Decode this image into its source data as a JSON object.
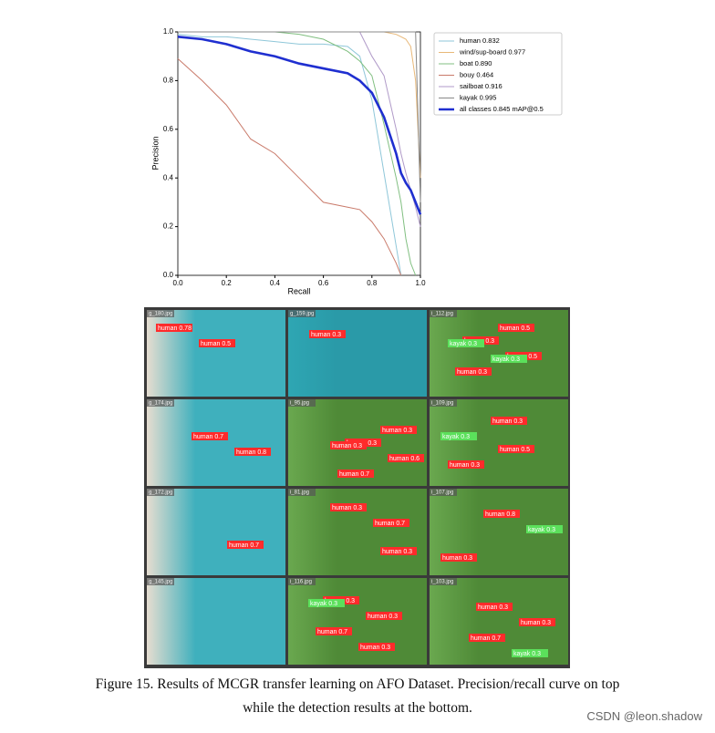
{
  "chart_data": {
    "type": "line",
    "xlabel": "Recall",
    "ylabel": "Precision",
    "x": [
      0,
      0.1,
      0.2,
      0.3,
      0.4,
      0.5,
      0.6,
      0.7,
      0.75,
      0.8,
      0.85,
      0.9,
      0.92,
      0.94,
      0.96,
      0.98,
      1.0
    ],
    "series": [
      {
        "name": "human 0.832",
        "color": "#8fc7d9",
        "values": [
          0.99,
          0.98,
          0.98,
          0.97,
          0.96,
          0.95,
          0.95,
          0.94,
          0.9,
          0.72,
          0.42,
          0.12,
          0.0,
          null,
          null,
          null,
          null
        ]
      },
      {
        "name": "wind/sup-board 0.977",
        "color": "#e8b878",
        "values": [
          1.0,
          1.0,
          1.0,
          1.0,
          1.0,
          1.0,
          1.0,
          1.0,
          1.0,
          1.0,
          1.0,
          0.99,
          0.98,
          0.97,
          0.94,
          0.8,
          0.4
        ]
      },
      {
        "name": "boat 0.890",
        "color": "#80bf80",
        "values": [
          1.0,
          1.0,
          1.0,
          1.0,
          1.0,
          0.99,
          0.97,
          0.92,
          0.88,
          0.82,
          0.62,
          0.4,
          0.3,
          0.15,
          0.05,
          0.0,
          null
        ]
      },
      {
        "name": "bouy 0.464",
        "color": "#c97a6a",
        "values": [
          0.89,
          0.8,
          0.7,
          0.56,
          0.5,
          0.4,
          0.3,
          0.28,
          0.27,
          0.22,
          0.15,
          0.05,
          0.0,
          null,
          null,
          null,
          null
        ]
      },
      {
        "name": "sailboat 0.916",
        "color": "#b09ac8",
        "values": [
          1.0,
          1.0,
          1.0,
          1.0,
          1.0,
          1.0,
          1.0,
          1.0,
          1.0,
          0.9,
          0.82,
          0.6,
          0.5,
          0.42,
          0.35,
          0.28,
          0.2
        ]
      },
      {
        "name": "kayak 0.995",
        "color": "#888888",
        "values": [
          1.0,
          1.0,
          1.0,
          1.0,
          1.0,
          1.0,
          1.0,
          1.0,
          1.0,
          1.0,
          1.0,
          1.0,
          1.0,
          1.0,
          1.0,
          1.0,
          0.3
        ]
      },
      {
        "name": "all classes 0.845 mAP@0.5",
        "color": "#1f2fd0",
        "values": [
          0.98,
          0.97,
          0.95,
          0.92,
          0.9,
          0.87,
          0.85,
          0.83,
          0.8,
          0.75,
          0.65,
          0.5,
          0.42,
          0.38,
          0.35,
          0.3,
          0.25
        ]
      }
    ],
    "xlim": [
      0,
      1
    ],
    "ylim": [
      0,
      1
    ],
    "xticks": [
      {
        "value": 0,
        "label": "0.0"
      },
      0.2,
      0.4,
      0.6,
      0.8,
      {
        "value": 1,
        "label": "1.0"
      }
    ],
    "yticks": [
      {
        "value": 0,
        "label": "0.0"
      },
      0.2,
      0.4,
      0.6,
      0.8,
      {
        "value": 1,
        "label": "1.0"
      }
    ],
    "legend": "outside right"
  },
  "images": [
    {
      "file": "g_180.jpg",
      "labels": [
        "human 0.78",
        "human 0.5"
      ]
    },
    {
      "file": "g_159.jpg",
      "labels": [
        "human 0.3"
      ]
    },
    {
      "file": "i_112.jpg",
      "labels": [
        "human 0.3",
        "human 0.5",
        "human 0.3",
        "human 0.5",
        "kayak 0.3",
        "kayak 0.3"
      ]
    },
    {
      "file": "g_174.jpg",
      "labels": [
        "human 0.7",
        "human 0.8"
      ]
    },
    {
      "file": "i_95.jpg",
      "labels": [
        "human 0.3",
        "human 0.6",
        "human 0.7",
        "human 0.3",
        "human 0.3"
      ]
    },
    {
      "file": "i_109.jpg",
      "labels": [
        "human 0.5",
        "human 0.3",
        "human 0.3",
        "kayak 0.3"
      ]
    },
    {
      "file": "g_172.jpg",
      "labels": [
        "human 0.7"
      ]
    },
    {
      "file": "i_81.jpg",
      "labels": [
        "human 0.3",
        "human 0.3",
        "human 0.7"
      ]
    },
    {
      "file": "i_107.jpg",
      "labels": [
        "human 0.3",
        "human 0.8",
        "kayak 0.3"
      ]
    },
    {
      "file": "g_145.jpg",
      "labels": []
    },
    {
      "file": "i_116.jpg",
      "labels": [
        "human 0.3",
        "human 0.3",
        "human 0.7",
        "human 0.3",
        "kayak 0.3"
      ]
    },
    {
      "file": "i_103.jpg",
      "labels": [
        "human 0.3",
        "human 0.3",
        "human 0.7",
        "kayak 0.3"
      ]
    }
  ],
  "caption": {
    "line1": "Figure 15. Results of MCGR transfer learning on AFO Dataset. Precision/recall curve on top",
    "line2": "while the detection results at the bottom."
  },
  "watermark": "CSDN @leon.shadow"
}
